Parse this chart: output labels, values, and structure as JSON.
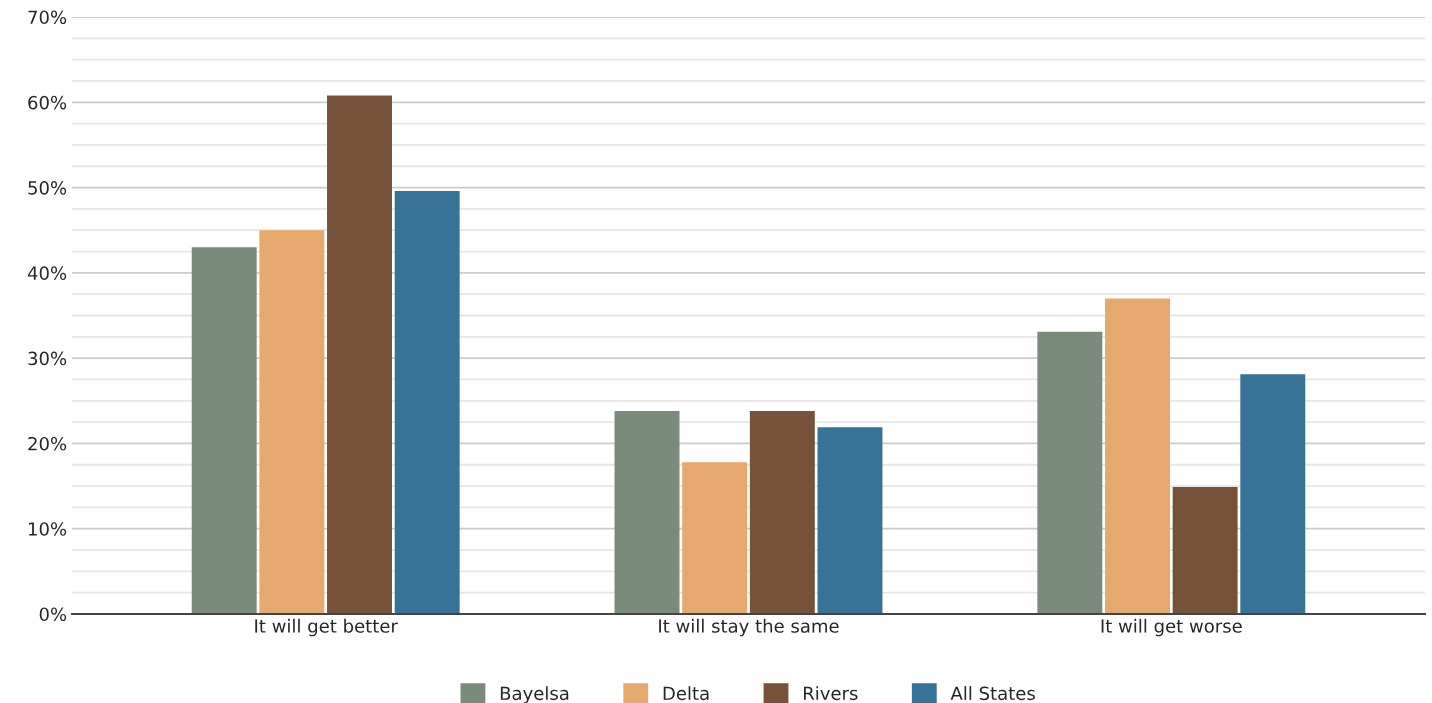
{
  "chart_data": {
    "type": "bar",
    "categories": [
      "It will get better",
      "It will stay the same",
      "It will get worse"
    ],
    "series": [
      {
        "name": "Bayelsa",
        "color": "#7b8b7b",
        "values": [
          43,
          23.8,
          33.1
        ]
      },
      {
        "name": "Delta",
        "color": "#e5a86d",
        "values": [
          45,
          17.8,
          37
        ]
      },
      {
        "name": "Rivers",
        "color": "#76523a",
        "values": [
          60.8,
          23.8,
          14.9
        ]
      },
      {
        "name": "All States",
        "color": "#367396",
        "values": [
          49.6,
          21.9,
          28.1
        ]
      }
    ],
    "ylim": [
      0,
      70
    ],
    "yticks": [
      {
        "value": 0,
        "label": "0%"
      },
      {
        "value": 2.5,
        "label": null
      },
      {
        "value": 5,
        "label": null
      },
      {
        "value": 7.5,
        "label": null
      },
      {
        "value": 10,
        "label": "10%"
      },
      {
        "value": 12.5,
        "label": null
      },
      {
        "value": 15,
        "label": null
      },
      {
        "value": 17.5,
        "label": null
      },
      {
        "value": 20,
        "label": "20%"
      },
      {
        "value": 22.5,
        "label": null
      },
      {
        "value": 25,
        "label": null
      },
      {
        "value": 27.5,
        "label": null
      },
      {
        "value": 30,
        "label": "30%"
      },
      {
        "value": 32.5,
        "label": null
      },
      {
        "value": 35,
        "label": null
      },
      {
        "value": 37.5,
        "label": null
      },
      {
        "value": 40,
        "label": "40%"
      },
      {
        "value": 42.5,
        "label": null
      },
      {
        "value": 45,
        "label": null
      },
      {
        "value": 47.5,
        "label": null
      },
      {
        "value": 50,
        "label": "50%"
      },
      {
        "value": 52.5,
        "label": null
      },
      {
        "value": 55,
        "label": null
      },
      {
        "value": 57.5,
        "label": null
      },
      {
        "value": 60,
        "label": "60%"
      },
      {
        "value": 62.5,
        "label": null
      },
      {
        "value": 65,
        "label": null
      },
      {
        "value": 67.5,
        "label": null
      },
      {
        "value": 70,
        "label": "70%"
      }
    ],
    "grid": "y",
    "legend": "bottom"
  }
}
